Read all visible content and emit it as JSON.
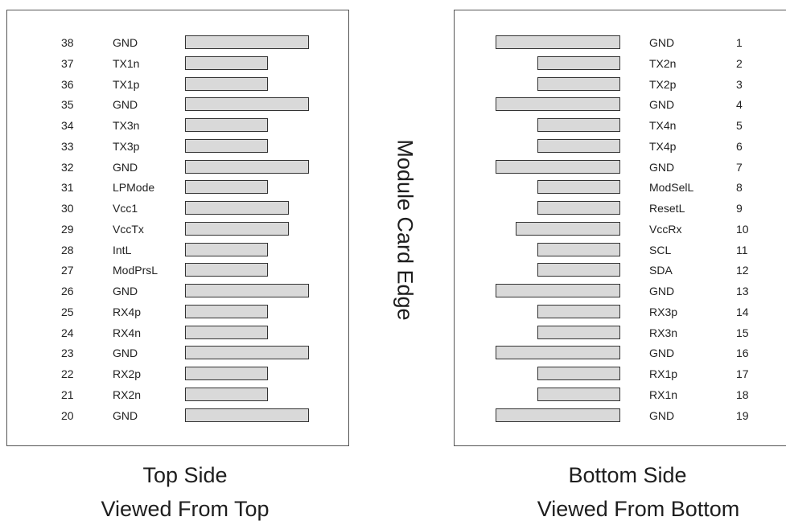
{
  "center_label": "Module Card Edge",
  "top_side": {
    "caption": "Top Side",
    "subcaption": "Viewed From Top",
    "pins": [
      {
        "num": "38",
        "label": "GND",
        "pad": "long"
      },
      {
        "num": "37",
        "label": "TX1n",
        "pad": "short"
      },
      {
        "num": "36",
        "label": "TX1p",
        "pad": "short"
      },
      {
        "num": "35",
        "label": "GND",
        "pad": "long"
      },
      {
        "num": "34",
        "label": "TX3n",
        "pad": "short"
      },
      {
        "num": "33",
        "label": "TX3p",
        "pad": "short"
      },
      {
        "num": "32",
        "label": "GND",
        "pad": "long"
      },
      {
        "num": "31",
        "label": "LPMode",
        "pad": "short"
      },
      {
        "num": "30",
        "label": "Vcc1",
        "pad": "medium"
      },
      {
        "num": "29",
        "label": "VccTx",
        "pad": "medium"
      },
      {
        "num": "28",
        "label": "IntL",
        "pad": "short"
      },
      {
        "num": "27",
        "label": "ModPrsL",
        "pad": "short"
      },
      {
        "num": "26",
        "label": "GND",
        "pad": "long"
      },
      {
        "num": "25",
        "label": "RX4p",
        "pad": "short"
      },
      {
        "num": "24",
        "label": "RX4n",
        "pad": "short"
      },
      {
        "num": "23",
        "label": "GND",
        "pad": "long"
      },
      {
        "num": "22",
        "label": "RX2p",
        "pad": "short"
      },
      {
        "num": "21",
        "label": "RX2n",
        "pad": "short"
      },
      {
        "num": "20",
        "label": "GND",
        "pad": "long"
      }
    ]
  },
  "bottom_side": {
    "caption": "Bottom Side",
    "subcaption": "Viewed From Bottom",
    "pins": [
      {
        "num": "1",
        "label": "GND",
        "pad": "long"
      },
      {
        "num": "2",
        "label": "TX2n",
        "pad": "short"
      },
      {
        "num": "3",
        "label": "TX2p",
        "pad": "short"
      },
      {
        "num": "4",
        "label": "GND",
        "pad": "long"
      },
      {
        "num": "5",
        "label": "TX4n",
        "pad": "short"
      },
      {
        "num": "6",
        "label": "TX4p",
        "pad": "short"
      },
      {
        "num": "7",
        "label": "GND",
        "pad": "long"
      },
      {
        "num": "8",
        "label": "ModSelL",
        "pad": "short"
      },
      {
        "num": "9",
        "label": "ResetL",
        "pad": "short"
      },
      {
        "num": "10",
        "label": "VccRx",
        "pad": "medium"
      },
      {
        "num": "11",
        "label": "SCL",
        "pad": "short"
      },
      {
        "num": "12",
        "label": "SDA",
        "pad": "short"
      },
      {
        "num": "13",
        "label": "GND",
        "pad": "long"
      },
      {
        "num": "14",
        "label": "RX3p",
        "pad": "short"
      },
      {
        "num": "15",
        "label": "RX3n",
        "pad": "short"
      },
      {
        "num": "16",
        "label": "GND",
        "pad": "long"
      },
      {
        "num": "17",
        "label": "RX1p",
        "pad": "short"
      },
      {
        "num": "18",
        "label": "RX1n",
        "pad": "short"
      },
      {
        "num": "19",
        "label": "GND",
        "pad": "long"
      }
    ]
  }
}
